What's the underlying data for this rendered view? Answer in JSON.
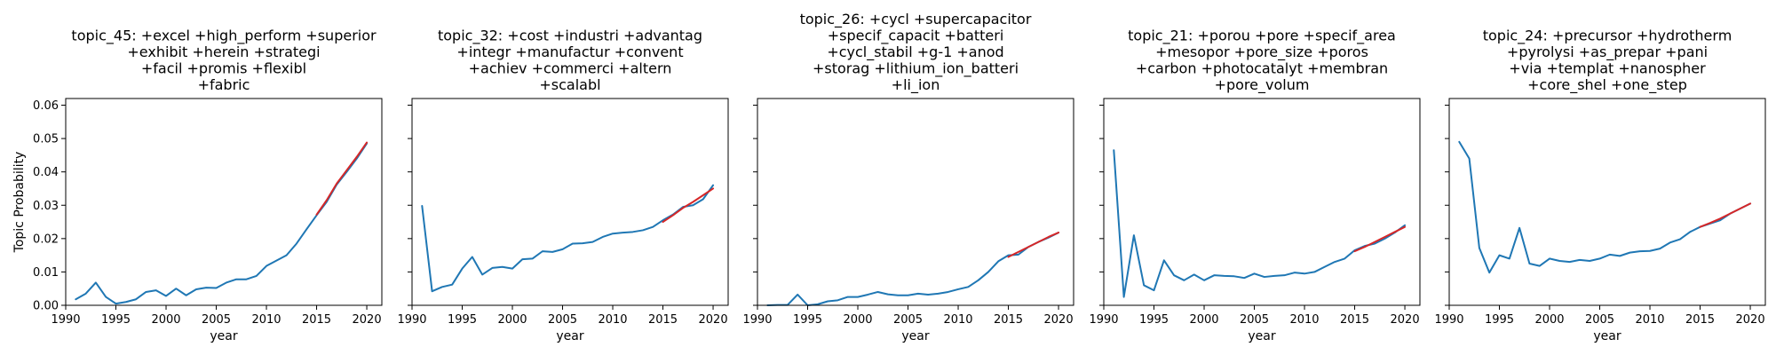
{
  "figure": {
    "ylabel": "Topic Probability"
  },
  "colors": {
    "observed": "#1f77b4",
    "trend": "#d62728"
  },
  "chart_data": [
    {
      "type": "line",
      "title_lines": [
        "topic_45: +excel +high_perform +superior",
        "+exhibit +herein +strategi",
        "+facil +promis +flexibl",
        "+fabric"
      ],
      "xlabel": "year",
      "xlim": [
        1990,
        2021.5
      ],
      "ylim": [
        0,
        0.062
      ],
      "xticks": [
        1990,
        1995,
        2000,
        2005,
        2010,
        2015,
        2020
      ],
      "yticks": [
        0.0,
        0.01,
        0.02,
        0.03,
        0.04,
        0.05,
        0.06
      ],
      "ytick_labels": [
        "0.00",
        "0.01",
        "0.02",
        "0.03",
        "0.04",
        "0.05",
        "0.06"
      ],
      "series": [
        {
          "x": [
            1991,
            1992,
            1993,
            1994,
            1995,
            1996,
            1997,
            1998,
            1999,
            2000,
            2001,
            2002,
            2003,
            2004,
            2005,
            2006,
            2007,
            2008,
            2009,
            2010,
            2011,
            2012,
            2013,
            2014,
            2015,
            2016,
            2017,
            2018,
            2019,
            2020
          ],
          "y": [
            0.0018,
            0.0035,
            0.0068,
            0.0025,
            0.0005,
            0.001,
            0.0018,
            0.004,
            0.0045,
            0.0028,
            0.005,
            0.003,
            0.0048,
            0.0053,
            0.0052,
            0.0068,
            0.0078,
            0.0078,
            0.0088,
            0.0118,
            0.0134,
            0.015,
            0.0185,
            0.0228,
            0.027,
            0.031,
            0.0362,
            0.04,
            0.044,
            0.0485
          ],
          "color_key": "observed"
        },
        {
          "x": [
            2015,
            2016,
            2017,
            2018,
            2019,
            2020
          ],
          "y": [
            0.0272,
            0.0315,
            0.0365,
            0.0405,
            0.0445,
            0.0488
          ],
          "color_key": "trend"
        }
      ]
    },
    {
      "type": "line",
      "title_lines": [
        "topic_32: +cost +industri +advantag",
        "+integr +manufactur +convent",
        "+achiev +commerci +altern",
        "+scalabl"
      ],
      "xlabel": "year",
      "xlim": [
        1990,
        2021.5
      ],
      "ylim": [
        0,
        0.062
      ],
      "xticks": [
        1990,
        1995,
        2000,
        2005,
        2010,
        2015,
        2020
      ],
      "yticks": [
        0.0,
        0.01,
        0.02,
        0.03,
        0.04,
        0.05,
        0.06
      ],
      "ytick_labels": [
        "",
        "",
        "",
        "",
        "",
        "",
        ""
      ],
      "series": [
        {
          "x": [
            1991,
            1992,
            1993,
            1994,
            1995,
            1996,
            1997,
            1998,
            1999,
            2000,
            2001,
            2002,
            2003,
            2004,
            2005,
            2006,
            2007,
            2008,
            2009,
            2010,
            2011,
            2012,
            2013,
            2014,
            2015,
            2016,
            2017,
            2018,
            2019,
            2020
          ],
          "y": [
            0.0298,
            0.0042,
            0.0055,
            0.0062,
            0.011,
            0.0145,
            0.0092,
            0.0112,
            0.0115,
            0.011,
            0.0138,
            0.014,
            0.0162,
            0.016,
            0.0168,
            0.0185,
            0.0186,
            0.019,
            0.0205,
            0.0215,
            0.0218,
            0.022,
            0.0225,
            0.0235,
            0.0255,
            0.0272,
            0.0295,
            0.03,
            0.0318,
            0.036
          ],
          "color_key": "observed"
        },
        {
          "x": [
            2015,
            2016,
            2017,
            2018,
            2019,
            2020
          ],
          "y": [
            0.025,
            0.027,
            0.0292,
            0.031,
            0.033,
            0.035
          ],
          "color_key": "trend"
        }
      ]
    },
    {
      "type": "line",
      "title_lines": [
        "topic_26: +cycl +supercapacitor",
        "+specif_capacit +batteri",
        "+cycl_stabil +g-1 +anod",
        "+storag +lithium_ion_batteri",
        "+li_ion"
      ],
      "xlabel": "year",
      "xlim": [
        1990,
        2021.5
      ],
      "ylim": [
        0,
        0.062
      ],
      "xticks": [
        1990,
        1995,
        2000,
        2005,
        2010,
        2015,
        2020
      ],
      "yticks": [
        0.0,
        0.01,
        0.02,
        0.03,
        0.04,
        0.05,
        0.06
      ],
      "ytick_labels": [
        "",
        "",
        "",
        "",
        "",
        "",
        ""
      ],
      "series": [
        {
          "x": [
            1991,
            1992,
            1993,
            1994,
            1995,
            1996,
            1997,
            1998,
            1999,
            2000,
            2001,
            2002,
            2003,
            2004,
            2005,
            2006,
            2007,
            2008,
            2009,
            2010,
            2011,
            2012,
            2013,
            2014,
            2015,
            2016,
            2017,
            2018,
            2019,
            2020
          ],
          "y": [
            0.0,
            0.0001,
            0.0001,
            0.0032,
            0.0,
            0.0003,
            0.0012,
            0.0015,
            0.0025,
            0.0025,
            0.0032,
            0.004,
            0.0033,
            0.003,
            0.003,
            0.0035,
            0.0032,
            0.0035,
            0.004,
            0.0048,
            0.0055,
            0.0075,
            0.01,
            0.0132,
            0.015,
            0.0152,
            0.0175,
            0.019,
            0.0203,
            0.0218
          ],
          "color_key": "observed"
        },
        {
          "x": [
            2015,
            2016,
            2017,
            2018,
            2019,
            2020
          ],
          "y": [
            0.0145,
            0.016,
            0.0175,
            0.019,
            0.0205,
            0.0218
          ],
          "color_key": "trend"
        }
      ]
    },
    {
      "type": "line",
      "title_lines": [
        "topic_21: +porou +pore +specif_area",
        "+mesopor +pore_size +poros",
        "+carbon +photocatalyt +membran",
        "+pore_volum"
      ],
      "xlabel": "year",
      "xlim": [
        1990,
        2021.5
      ],
      "ylim": [
        0,
        0.062
      ],
      "xticks": [
        1990,
        1995,
        2000,
        2005,
        2010,
        2015,
        2020
      ],
      "yticks": [
        0.0,
        0.01,
        0.02,
        0.03,
        0.04,
        0.05,
        0.06
      ],
      "ytick_labels": [
        "",
        "",
        "",
        "",
        "",
        "",
        ""
      ],
      "series": [
        {
          "x": [
            1991,
            1992,
            1993,
            1994,
            1995,
            1996,
            1997,
            1998,
            1999,
            2000,
            2001,
            2002,
            2003,
            2004,
            2005,
            2006,
            2007,
            2008,
            2009,
            2010,
            2011,
            2012,
            2013,
            2014,
            2015,
            2016,
            2017,
            2018,
            2019,
            2020
          ],
          "y": [
            0.0465,
            0.0025,
            0.021,
            0.006,
            0.0045,
            0.0135,
            0.009,
            0.0075,
            0.0092,
            0.0075,
            0.009,
            0.0088,
            0.0087,
            0.0082,
            0.0095,
            0.0085,
            0.0088,
            0.009,
            0.0098,
            0.0095,
            0.01,
            0.0115,
            0.013,
            0.014,
            0.0165,
            0.0178,
            0.0185,
            0.02,
            0.0218,
            0.024
          ],
          "color_key": "observed"
        },
        {
          "x": [
            2015,
            2016,
            2017,
            2018,
            2019,
            2020
          ],
          "y": [
            0.0162,
            0.0175,
            0.019,
            0.0205,
            0.022,
            0.0235
          ],
          "color_key": "trend"
        }
      ]
    },
    {
      "type": "line",
      "title_lines": [
        "topic_24: +precursor +hydrotherm",
        "+pyrolysi +as_prepar +pani",
        "+via +templat +nanospher",
        "+core_shel +one_step"
      ],
      "xlabel": "year",
      "xlim": [
        1990,
        2021.5
      ],
      "ylim": [
        0,
        0.062
      ],
      "xticks": [
        1990,
        1995,
        2000,
        2005,
        2010,
        2015,
        2020
      ],
      "yticks": [
        0.0,
        0.01,
        0.02,
        0.03,
        0.04,
        0.05,
        0.06
      ],
      "ytick_labels": [
        "",
        "",
        "",
        "",
        "",
        "",
        ""
      ],
      "series": [
        {
          "x": [
            1991,
            1992,
            1993,
            1994,
            1995,
            1996,
            1997,
            1998,
            1999,
            2000,
            2001,
            2002,
            2003,
            2004,
            2005,
            2006,
            2007,
            2008,
            2009,
            2010,
            2011,
            2012,
            2013,
            2014,
            2015,
            2016,
            2017,
            2018,
            2019,
            2020
          ],
          "y": [
            0.049,
            0.044,
            0.0172,
            0.0098,
            0.015,
            0.014,
            0.0232,
            0.0125,
            0.0118,
            0.014,
            0.0133,
            0.013,
            0.0136,
            0.0133,
            0.014,
            0.0152,
            0.0148,
            0.0158,
            0.0162,
            0.0163,
            0.017,
            0.0188,
            0.0198,
            0.022,
            0.0235,
            0.0245,
            0.0255,
            0.0275,
            0.029,
            0.0305
          ],
          "color_key": "observed"
        },
        {
          "x": [
            2015,
            2016,
            2017,
            2018,
            2019,
            2020
          ],
          "y": [
            0.0235,
            0.0247,
            0.026,
            0.0275,
            0.029,
            0.0305
          ],
          "color_key": "trend"
        }
      ]
    }
  ]
}
